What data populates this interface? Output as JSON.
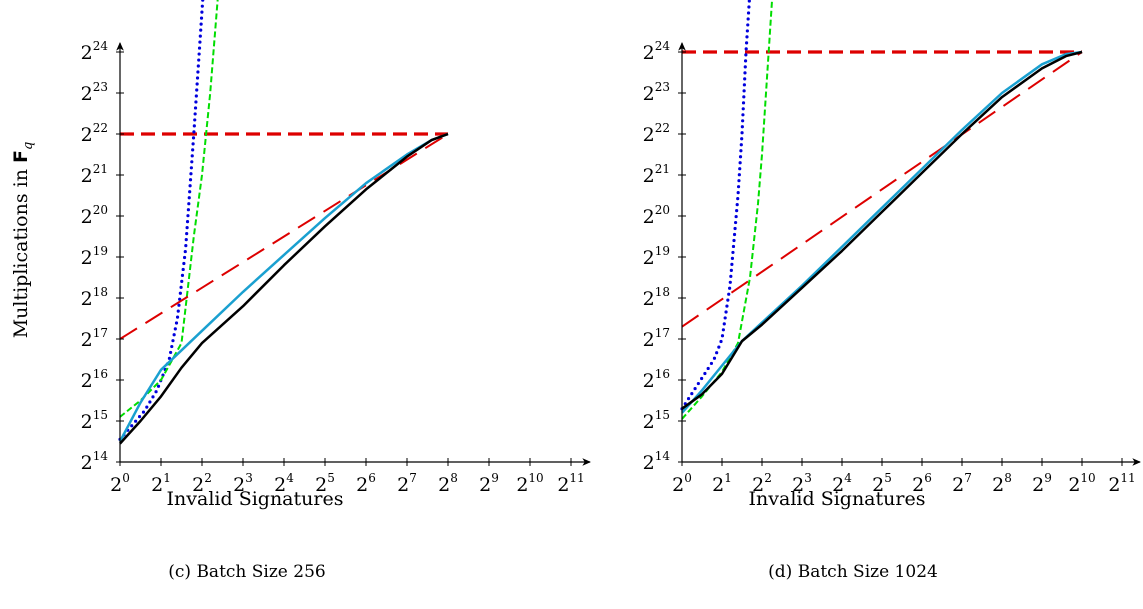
{
  "chart_data": [
    {
      "id": "c",
      "type": "line",
      "caption": "(c) Batch Size 256",
      "xlabel": "Invalid Signatures",
      "ylabel_prefix": "Multiplications in ",
      "ylabel_field": "F",
      "ylabel_sub": "q",
      "x_scale": "log2",
      "y_scale": "log2",
      "xlim_exp": [
        0,
        11.6
      ],
      "ylim_exp": [
        14,
        24.6
      ],
      "x_ticks": [
        {
          "base": "2",
          "exp": "0",
          "v": 0
        },
        {
          "base": "2",
          "exp": "1",
          "v": 1
        },
        {
          "base": "2",
          "exp": "2",
          "v": 2
        },
        {
          "base": "2",
          "exp": "3",
          "v": 3
        },
        {
          "base": "2",
          "exp": "4",
          "v": 4
        },
        {
          "base": "2",
          "exp": "5",
          "v": 5
        },
        {
          "base": "2",
          "exp": "6",
          "v": 6
        },
        {
          "base": "2",
          "exp": "7",
          "v": 7
        },
        {
          "base": "2",
          "exp": "8",
          "v": 8
        },
        {
          "base": "2",
          "exp": "9",
          "v": 9
        },
        {
          "base": "2",
          "exp": "10",
          "v": 10
        },
        {
          "base": "2",
          "exp": "11",
          "v": 11
        }
      ],
      "y_ticks": [
        {
          "base": "2",
          "exp": "14",
          "v": 14
        },
        {
          "base": "2",
          "exp": "15",
          "v": 15
        },
        {
          "base": "2",
          "exp": "16",
          "v": 16
        },
        {
          "base": "2",
          "exp": "17",
          "v": 17
        },
        {
          "base": "2",
          "exp": "18",
          "v": 18
        },
        {
          "base": "2",
          "exp": "19",
          "v": 19
        },
        {
          "base": "2",
          "exp": "20",
          "v": 20
        },
        {
          "base": "2",
          "exp": "21",
          "v": 21
        },
        {
          "base": "2",
          "exp": "22",
          "v": 22
        },
        {
          "base": "2",
          "exp": "23",
          "v": 23
        },
        {
          "base": "2",
          "exp": "24",
          "v": 24
        }
      ],
      "series": [
        {
          "color": "#dd0000",
          "style": "dash-thick",
          "width": 3.2,
          "x": [
            0,
            8
          ],
          "y": [
            22,
            22
          ]
        },
        {
          "color": "#0000dd",
          "style": "dot",
          "width": 3.2,
          "x": [
            0,
            0.3,
            0.6,
            0.9,
            1.2,
            1.4,
            1.6,
            1.7,
            1.8,
            1.9,
            2.0,
            2.1,
            2.2
          ],
          "y": [
            14.55,
            14.9,
            15.25,
            15.75,
            16.5,
            17.5,
            19.2,
            20.6,
            22.0,
            23.5,
            25.0,
            26.5,
            28.0
          ]
        },
        {
          "color": "#00dd00",
          "style": "dash-fine",
          "width": 2,
          "x": [
            0,
            0.5,
            1.0,
            1.5,
            1.8,
            2.0,
            2.2,
            2.4,
            2.6
          ],
          "y": [
            15.1,
            15.5,
            16.0,
            16.9,
            19.5,
            21.0,
            23.0,
            25.5,
            28.0
          ]
        },
        {
          "color": "#dd0000",
          "style": "dash-long",
          "width": 2,
          "x": [
            0,
            8
          ],
          "y": [
            17.0,
            22.0
          ]
        },
        {
          "color": "#1aa0d0",
          "style": "solid",
          "width": 2.5,
          "x": [
            0,
            0.5,
            1,
            2,
            3,
            4,
            5,
            6,
            7,
            7.6,
            8
          ],
          "y": [
            14.5,
            15.45,
            16.25,
            17.2,
            18.15,
            19.05,
            19.95,
            20.8,
            21.5,
            21.85,
            22.0
          ]
        },
        {
          "color": "#000000",
          "style": "solid",
          "width": 2.5,
          "x": [
            0,
            0.5,
            1,
            1.5,
            2,
            3,
            4,
            5,
            6,
            7,
            7.6,
            8
          ],
          "y": [
            14.45,
            15.0,
            15.6,
            16.3,
            16.9,
            17.8,
            18.8,
            19.75,
            20.65,
            21.45,
            21.85,
            22.0
          ]
        }
      ]
    },
    {
      "id": "d",
      "type": "line",
      "caption": "(d) Batch Size 1024",
      "xlabel": "Invalid Signatures",
      "ylabel_prefix": "",
      "ylabel_field": "",
      "ylabel_sub": "",
      "x_scale": "log2",
      "y_scale": "log2",
      "xlim_exp": [
        0,
        11.6
      ],
      "ylim_exp": [
        14,
        24.6
      ],
      "x_ticks": [
        {
          "base": "2",
          "exp": "0",
          "v": 0
        },
        {
          "base": "2",
          "exp": "1",
          "v": 1
        },
        {
          "base": "2",
          "exp": "2",
          "v": 2
        },
        {
          "base": "2",
          "exp": "3",
          "v": 3
        },
        {
          "base": "2",
          "exp": "4",
          "v": 4
        },
        {
          "base": "2",
          "exp": "5",
          "v": 5
        },
        {
          "base": "2",
          "exp": "6",
          "v": 6
        },
        {
          "base": "2",
          "exp": "7",
          "v": 7
        },
        {
          "base": "2",
          "exp": "8",
          "v": 8
        },
        {
          "base": "2",
          "exp": "9",
          "v": 9
        },
        {
          "base": "2",
          "exp": "10",
          "v": 10
        },
        {
          "base": "2",
          "exp": "11",
          "v": 11
        }
      ],
      "y_ticks": [
        {
          "base": "2",
          "exp": "14",
          "v": 14
        },
        {
          "base": "2",
          "exp": "15",
          "v": 15
        },
        {
          "base": "2",
          "exp": "16",
          "v": 16
        },
        {
          "base": "2",
          "exp": "17",
          "v": 17
        },
        {
          "base": "2",
          "exp": "18",
          "v": 18
        },
        {
          "base": "2",
          "exp": "19",
          "v": 19
        },
        {
          "base": "2",
          "exp": "20",
          "v": 20
        },
        {
          "base": "2",
          "exp": "21",
          "v": 21
        },
        {
          "base": "2",
          "exp": "22",
          "v": 22
        },
        {
          "base": "2",
          "exp": "23",
          "v": 23
        },
        {
          "base": "2",
          "exp": "24",
          "v": 24
        }
      ],
      "series": [
        {
          "color": "#dd0000",
          "style": "dash-thick",
          "width": 3.2,
          "x": [
            0,
            10
          ],
          "y": [
            24,
            24
          ]
        },
        {
          "color": "#0000dd",
          "style": "dot",
          "width": 3.2,
          "x": [
            0,
            0.4,
            0.8,
            1.0,
            1.2,
            1.4,
            1.5,
            1.6,
            1.7,
            1.8,
            1.9
          ],
          "y": [
            15.3,
            15.9,
            16.5,
            17.0,
            18.3,
            20.5,
            22.0,
            24.0,
            25.5,
            27.0,
            28.5
          ]
        },
        {
          "color": "#00dd00",
          "style": "dash-fine",
          "width": 2,
          "x": [
            0,
            0.5,
            1.0,
            1.4,
            1.7,
            1.9,
            2.0,
            2.1,
            2.2,
            2.3,
            2.4
          ],
          "y": [
            15.05,
            15.6,
            16.2,
            16.9,
            18.5,
            20.3,
            21.5,
            23.0,
            24.5,
            26.0,
            27.5
          ]
        },
        {
          "color": "#dd0000",
          "style": "dash-long",
          "width": 2,
          "x": [
            0,
            10
          ],
          "y": [
            17.3,
            24.0
          ]
        },
        {
          "color": "#1aa0d0",
          "style": "solid",
          "width": 2.5,
          "x": [
            0,
            0.5,
            1,
            1.5,
            2,
            3,
            4,
            5,
            6,
            7,
            8,
            9,
            9.6,
            10
          ],
          "y": [
            15.2,
            15.75,
            16.35,
            16.95,
            17.4,
            18.3,
            19.25,
            20.2,
            21.15,
            22.1,
            23.0,
            23.7,
            23.95,
            24.0
          ]
        },
        {
          "color": "#000000",
          "style": "solid",
          "width": 2.5,
          "x": [
            0,
            0.5,
            1,
            1.5,
            2,
            3,
            4,
            5,
            6,
            7,
            8,
            9,
            9.6,
            10
          ],
          "y": [
            15.3,
            15.65,
            16.15,
            16.95,
            17.35,
            18.25,
            19.15,
            20.1,
            21.05,
            22.0,
            22.9,
            23.6,
            23.9,
            24.0
          ]
        }
      ]
    }
  ]
}
